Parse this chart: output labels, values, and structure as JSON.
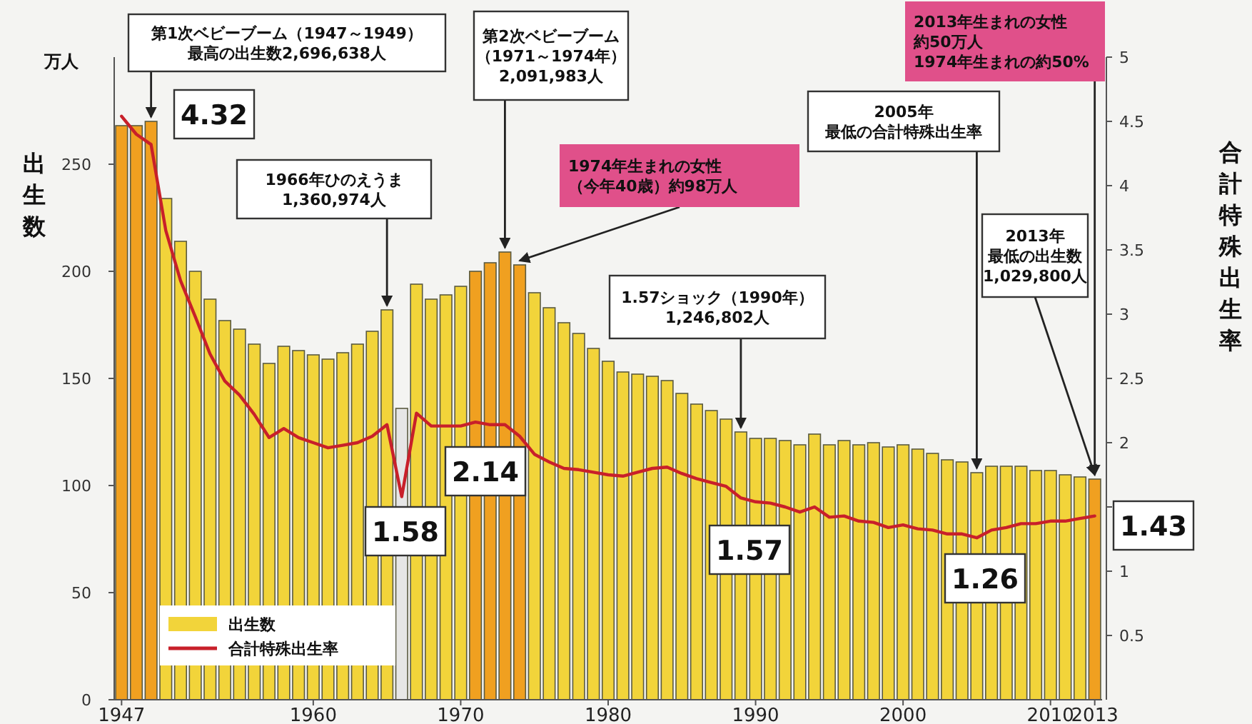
{
  "chart_data": {
    "type": "bar",
    "ylabel": "出生数",
    "y2label": "合計特殊出生率",
    "x": [
      1947,
      1948,
      1949,
      1950,
      1951,
      1952,
      1953,
      1954,
      1955,
      1956,
      1957,
      1958,
      1959,
      1960,
      1961,
      1962,
      1963,
      1964,
      1965,
      1966,
      1967,
      1968,
      1969,
      1970,
      1971,
      1972,
      1973,
      1974,
      1975,
      1976,
      1977,
      1978,
      1979,
      1980,
      1981,
      1982,
      1983,
      1984,
      1985,
      1986,
      1987,
      1988,
      1989,
      1990,
      1991,
      1992,
      1993,
      1994,
      1995,
      1996,
      1997,
      1998,
      1999,
      2000,
      2001,
      2002,
      2003,
      2004,
      2005,
      2006,
      2007,
      2008,
      2009,
      2010,
      2011,
      2012,
      2013
    ],
    "xlim": [
      1946.5,
      2013.5
    ],
    "xticks": [
      1947,
      1960,
      1970,
      1980,
      1990,
      2000,
      2010,
      2013
    ],
    "ylim": [
      0,
      300
    ],
    "yticks": [
      0,
      50,
      100,
      150,
      200,
      250
    ],
    "y2lim": [
      0,
      5
    ],
    "y2ticks": [
      0.5,
      1,
      {
        "value": 1.5,
        "label": null
      },
      2,
      2.5,
      3,
      3.5,
      4,
      4.5,
      5
    ],
    "grid": false,
    "legend": "bottom left",
    "series": [
      {
        "name": "出生数",
        "color": "#f2d43a",
        "colors": [
          "#f0a020",
          "#f0a020",
          "#f0a020",
          "#f2d43a",
          "#f2d43a",
          "#f2d43a",
          "#f2d43a",
          "#f2d43a",
          "#f2d43a",
          "#f2d43a",
          "#f2d43a",
          "#f2d43a",
          "#f2d43a",
          "#f2d43a",
          "#f2d43a",
          "#f2d43a",
          "#f2d43a",
          "#f2d43a",
          "#f2d43a",
          "#e6e6e6",
          "#f2d43a",
          "#f2d43a",
          "#f2d43a",
          "#f2d43a",
          "#f0a020",
          "#f0a020",
          "#f0a020",
          "#f0a020",
          "#f2d43a",
          "#f2d43a",
          "#f2d43a",
          "#f2d43a",
          "#f2d43a",
          "#f2d43a",
          "#f2d43a",
          "#f2d43a",
          "#f2d43a",
          "#f2d43a",
          "#f2d43a",
          "#f2d43a",
          "#f2d43a",
          "#f2d43a",
          "#f2d43a",
          "#f2d43a",
          "#f2d43a",
          "#f2d43a",
          "#f2d43a",
          "#f2d43a",
          "#f2d43a",
          "#f2d43a",
          "#f2d43a",
          "#f2d43a",
          "#f2d43a",
          "#f2d43a",
          "#f2d43a",
          "#f2d43a",
          "#f2d43a",
          "#f2d43a",
          "#f2d43a",
          "#f2d43a",
          "#f2d43a",
          "#f2d43a",
          "#f2d43a",
          "#f2d43a",
          "#f2d43a",
          "#f2d43a",
          "#f0a020"
        ],
        "values": [
          268,
          268,
          270,
          234,
          214,
          200,
          187,
          177,
          173,
          166,
          157,
          165,
          163,
          161,
          159,
          162,
          166,
          172,
          182,
          136,
          194,
          187,
          189,
          193,
          200,
          204,
          209,
          203,
          190,
          183,
          176,
          171,
          164,
          158,
          153,
          152,
          151,
          149,
          143,
          138,
          135,
          131,
          125,
          122,
          122,
          121,
          119,
          124,
          119,
          121,
          119,
          120,
          118,
          119,
          117,
          115,
          112,
          111,
          106,
          109,
          109,
          109,
          107,
          107,
          105,
          104,
          103
        ]
      },
      {
        "name": "合計特殊出生率",
        "type": "line",
        "axis": "y2",
        "color": "#c8202a",
        "values": [
          4.54,
          4.4,
          4.32,
          3.65,
          3.26,
          2.98,
          2.69,
          2.48,
          2.37,
          2.22,
          2.04,
          2.11,
          2.04,
          2.0,
          1.96,
          1.98,
          2.0,
          2.05,
          2.14,
          1.58,
          2.23,
          2.13,
          2.13,
          2.13,
          2.16,
          2.14,
          2.14,
          2.05,
          1.91,
          1.85,
          1.8,
          1.79,
          1.77,
          1.75,
          1.74,
          1.77,
          1.8,
          1.81,
          1.76,
          1.72,
          1.69,
          1.66,
          1.57,
          1.54,
          1.53,
          1.5,
          1.46,
          1.5,
          1.42,
          1.43,
          1.39,
          1.38,
          1.34,
          1.36,
          1.33,
          1.32,
          1.29,
          1.29,
          1.26,
          1.32,
          1.34,
          1.37,
          1.37,
          1.39,
          1.39,
          1.41,
          1.43
        ],
        "value_labels": [
          null,
          null,
          "4.32",
          null,
          null,
          null,
          null,
          null,
          null,
          null,
          null,
          null,
          null,
          null,
          null,
          null,
          null,
          null,
          null,
          "1.58",
          null,
          null,
          null,
          null,
          null,
          null,
          "2.14",
          null,
          null,
          null,
          null,
          null,
          null,
          null,
          null,
          null,
          null,
          null,
          null,
          null,
          null,
          null,
          "1.57",
          null,
          null,
          null,
          null,
          null,
          null,
          null,
          null,
          null,
          null,
          null,
          null,
          null,
          null,
          null,
          "1.26",
          null,
          null,
          null,
          null,
          null,
          null,
          null,
          "1.43"
        ]
      }
    ],
    "annotations": [
      "万人",
      {
        "text": "第1次ベビーブーム（1947～1949）最高の出生数2,696,638人",
        "x": 1949,
        "y": 270
      },
      {
        "text": "第2次ベビーブーム（1971～1974年）2,091,983人",
        "x": 1973,
        "y": 209
      },
      {
        "text": "1974年生まれの女性（今年40歳）約98万人",
        "x": 1974,
        "y": 203
      },
      {
        "text": "1966年ひのえうま1,360,974人",
        "x": 1965,
        "y": 182
      },
      {
        "text": "1.57ショック（1990年）1,246,802人",
        "x": 1989,
        "y": 125
      },
      {
        "text": "2005年最低の合計特殊出生率",
        "x": 2005,
        "y": 106
      },
      {
        "text": "2013年最低の出生数1,029,800人",
        "x": 2013,
        "y": 103
      },
      {
        "text": "2013年生まれの女性約50万人1974年生まれの約50%",
        "x": 2013,
        "y": 103
      }
    ]
  }
}
